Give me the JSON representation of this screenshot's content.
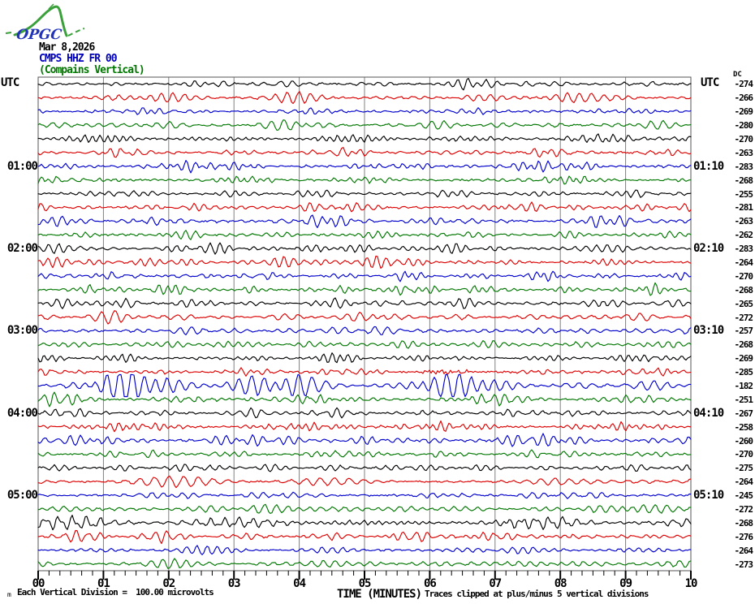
{
  "header": {
    "logo_text": "OPGC",
    "date": "Mar 8,2026",
    "station_code": "CMPS HHZ FR 00",
    "station_name": "(Compains Vertical)"
  },
  "colors": {
    "trace_cycle": [
      "#000000",
      "#dd0000",
      "#0000cc",
      "#007700"
    ],
    "header_station": "#0000bb",
    "header_name": "#007700",
    "grid": "#808080",
    "border": "#555555",
    "logo_green": "#3aa03a",
    "logo_blue": "#2233bb",
    "background": "#ffffff"
  },
  "side_headers": {
    "utc_left": "UTC",
    "utc_right": "UTC",
    "dc_header": "DC"
  },
  "footer": {
    "left_note": "Each Vertical Division =  100.00 microvolts",
    "axis_title": "TIME (MINUTES)",
    "right_note": "Traces clipped at plus/minus 5 vertical divisions",
    "corner_mark": "m"
  },
  "chart_data": {
    "type": "line",
    "subtype": "helicorder-seismogram",
    "title": "CMPS HHZ FR 00 (Compains Vertical)",
    "xlabel": "TIME (MINUTES)",
    "x_ticks": [
      "00",
      "01",
      "02",
      "03",
      "04",
      "05",
      "06",
      "07",
      "08",
      "09",
      "10"
    ],
    "x_range_minutes": [
      0,
      10
    ],
    "minutes_per_row": 10,
    "row_start_utc": "00:00",
    "minor_ticks_per_minute": 6,
    "rows": [
      {
        "utc_left": "",
        "utc_right": "",
        "dc": -274
      },
      {
        "utc_left": "",
        "utc_right": "",
        "dc": -266
      },
      {
        "utc_left": "",
        "utc_right": "",
        "dc": -269
      },
      {
        "utc_left": "",
        "utc_right": "",
        "dc": -280
      },
      {
        "utc_left": "",
        "utc_right": "",
        "dc": -270
      },
      {
        "utc_left": "",
        "utc_right": "",
        "dc": -263
      },
      {
        "utc_left": "01:00",
        "utc_right": "01:10",
        "dc": -283
      },
      {
        "utc_left": "",
        "utc_right": "",
        "dc": -268
      },
      {
        "utc_left": "",
        "utc_right": "",
        "dc": -255
      },
      {
        "utc_left": "",
        "utc_right": "",
        "dc": -281
      },
      {
        "utc_left": "",
        "utc_right": "",
        "dc": -263
      },
      {
        "utc_left": "",
        "utc_right": "",
        "dc": -262
      },
      {
        "utc_left": "02:00",
        "utc_right": "02:10",
        "dc": -283
      },
      {
        "utc_left": "",
        "utc_right": "",
        "dc": -264
      },
      {
        "utc_left": "",
        "utc_right": "",
        "dc": -270
      },
      {
        "utc_left": "",
        "utc_right": "",
        "dc": -268
      },
      {
        "utc_left": "",
        "utc_right": "",
        "dc": -265
      },
      {
        "utc_left": "",
        "utc_right": "",
        "dc": -272
      },
      {
        "utc_left": "03:00",
        "utc_right": "03:10",
        "dc": -257
      },
      {
        "utc_left": "",
        "utc_right": "",
        "dc": -268
      },
      {
        "utc_left": "",
        "utc_right": "",
        "dc": -269
      },
      {
        "utc_left": "",
        "utc_right": "",
        "dc": -285
      },
      {
        "utc_left": "",
        "utc_right": "",
        "dc": -182
      },
      {
        "utc_left": "",
        "utc_right": "",
        "dc": -251
      },
      {
        "utc_left": "04:00",
        "utc_right": "04:10",
        "dc": -267
      },
      {
        "utc_left": "",
        "utc_right": "",
        "dc": -258
      },
      {
        "utc_left": "",
        "utc_right": "",
        "dc": -260
      },
      {
        "utc_left": "",
        "utc_right": "",
        "dc": -270
      },
      {
        "utc_left": "",
        "utc_right": "",
        "dc": -275
      },
      {
        "utc_left": "",
        "utc_right": "",
        "dc": -264
      },
      {
        "utc_left": "05:00",
        "utc_right": "05:10",
        "dc": -245
      },
      {
        "utc_left": "",
        "utc_right": "",
        "dc": -272
      },
      {
        "utc_left": "",
        "utc_right": "",
        "dc": -268
      },
      {
        "utc_left": "",
        "utc_right": "",
        "dc": -276
      },
      {
        "utc_left": "",
        "utc_right": "",
        "dc": -264
      },
      {
        "utc_left": "",
        "utc_right": "",
        "dc": -273
      }
    ]
  }
}
